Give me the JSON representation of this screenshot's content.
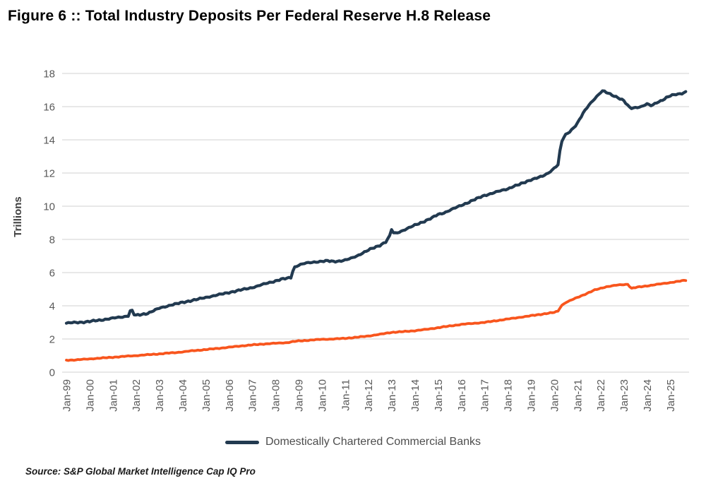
{
  "figure": {
    "title": "Figure 6 :: Total Industry Deposits Per Federal Reserve H.8 Release",
    "source_note": "Source: S&P Global Market Intelligence Cap IQ Pro"
  },
  "chart_data": {
    "type": "line",
    "title": "Figure 6 :: Total Industry Deposits Per Federal Reserve H.8 Release",
    "xlabel": "",
    "ylabel": "Trillions",
    "ylim": [
      0,
      18
    ],
    "xlim": [
      1999.0,
      2025.75
    ],
    "grid": "horizontal",
    "gridline_color": "#e0e0e0",
    "tick_label_color": "#595959",
    "y_ticks": [
      0,
      2,
      4,
      6,
      8,
      10,
      12,
      14,
      16,
      18
    ],
    "x_tick_labels": [
      "Jan-99",
      "Jan-00",
      "Jan-01",
      "Jan-02",
      "Jan-03",
      "Jan-04",
      "Jan-05",
      "Jan-06",
      "Jan-07",
      "Jan-08",
      "Jan-09",
      "Jan-10",
      "Jan-11",
      "Jan-12",
      "Jan-13",
      "Jan-14",
      "Jan-15",
      "Jan-16",
      "Jan-17",
      "Jan-18",
      "Jan-19",
      "Jan-20",
      "Jan-21",
      "Jan-22",
      "Jan-23",
      "Jan-24",
      "Jan-25"
    ],
    "legend": {
      "position": "bottom",
      "entries": [
        "Domestically Chartered Commercial Banks"
      ]
    },
    "series": [
      {
        "name": "Domestically Chartered Commercial Banks",
        "color": "#223a50",
        "in_legend": true,
        "points": [
          [
            1999.0,
            2.95
          ],
          [
            1999.25,
            2.98
          ],
          [
            1999.5,
            3.0
          ],
          [
            1999.75,
            3.02
          ],
          [
            2000.0,
            3.05
          ],
          [
            2000.25,
            3.1
          ],
          [
            2000.5,
            3.15
          ],
          [
            2000.75,
            3.2
          ],
          [
            2001.0,
            3.25
          ],
          [
            2001.25,
            3.3
          ],
          [
            2001.5,
            3.35
          ],
          [
            2001.7,
            3.42
          ],
          [
            2001.79,
            3.9
          ],
          [
            2001.88,
            3.5
          ],
          [
            2002.0,
            3.42
          ],
          [
            2002.25,
            3.48
          ],
          [
            2002.5,
            3.55
          ],
          [
            2002.75,
            3.7
          ],
          [
            2003.0,
            3.85
          ],
          [
            2003.25,
            3.95
          ],
          [
            2003.5,
            4.05
          ],
          [
            2003.75,
            4.12
          ],
          [
            2004.0,
            4.2
          ],
          [
            2004.25,
            4.28
          ],
          [
            2004.5,
            4.35
          ],
          [
            2004.75,
            4.42
          ],
          [
            2005.0,
            4.5
          ],
          [
            2005.25,
            4.58
          ],
          [
            2005.5,
            4.65
          ],
          [
            2005.75,
            4.72
          ],
          [
            2006.0,
            4.8
          ],
          [
            2006.25,
            4.88
          ],
          [
            2006.5,
            4.95
          ],
          [
            2006.75,
            5.02
          ],
          [
            2007.0,
            5.1
          ],
          [
            2007.25,
            5.2
          ],
          [
            2007.5,
            5.3
          ],
          [
            2007.75,
            5.4
          ],
          [
            2008.0,
            5.5
          ],
          [
            2008.25,
            5.6
          ],
          [
            2008.5,
            5.65
          ],
          [
            2008.67,
            5.7
          ],
          [
            2008.79,
            6.3
          ],
          [
            2008.92,
            6.4
          ],
          [
            2009.0,
            6.45
          ],
          [
            2009.25,
            6.55
          ],
          [
            2009.5,
            6.6
          ],
          [
            2009.75,
            6.65
          ],
          [
            2010.0,
            6.68
          ],
          [
            2010.25,
            6.7
          ],
          [
            2010.5,
            6.67
          ],
          [
            2010.75,
            6.7
          ],
          [
            2011.0,
            6.75
          ],
          [
            2011.25,
            6.85
          ],
          [
            2011.5,
            7.0
          ],
          [
            2011.75,
            7.18
          ],
          [
            2012.0,
            7.35
          ],
          [
            2012.25,
            7.5
          ],
          [
            2012.5,
            7.65
          ],
          [
            2012.75,
            7.85
          ],
          [
            2012.92,
            8.2
          ],
          [
            2013.0,
            8.6
          ],
          [
            2013.1,
            8.35
          ],
          [
            2013.25,
            8.4
          ],
          [
            2013.5,
            8.55
          ],
          [
            2013.75,
            8.7
          ],
          [
            2014.0,
            8.85
          ],
          [
            2014.25,
            9.0
          ],
          [
            2014.5,
            9.15
          ],
          [
            2014.75,
            9.3
          ],
          [
            2015.0,
            9.5
          ],
          [
            2015.25,
            9.6
          ],
          [
            2015.5,
            9.75
          ],
          [
            2015.75,
            9.9
          ],
          [
            2016.0,
            10.05
          ],
          [
            2016.25,
            10.2
          ],
          [
            2016.5,
            10.35
          ],
          [
            2016.75,
            10.5
          ],
          [
            2017.0,
            10.65
          ],
          [
            2017.25,
            10.75
          ],
          [
            2017.5,
            10.85
          ],
          [
            2017.75,
            10.95
          ],
          [
            2018.0,
            11.05
          ],
          [
            2018.25,
            11.2
          ],
          [
            2018.5,
            11.3
          ],
          [
            2018.75,
            11.45
          ],
          [
            2019.0,
            11.6
          ],
          [
            2019.25,
            11.7
          ],
          [
            2019.5,
            11.8
          ],
          [
            2019.75,
            12.0
          ],
          [
            2020.0,
            12.3
          ],
          [
            2020.17,
            12.5
          ],
          [
            2020.25,
            13.3
          ],
          [
            2020.33,
            13.9
          ],
          [
            2020.42,
            14.15
          ],
          [
            2020.5,
            14.3
          ],
          [
            2020.75,
            14.6
          ],
          [
            2021.0,
            15.0
          ],
          [
            2021.25,
            15.6
          ],
          [
            2021.5,
            16.1
          ],
          [
            2021.75,
            16.5
          ],
          [
            2022.0,
            16.85
          ],
          [
            2022.1,
            16.95
          ],
          [
            2022.25,
            16.85
          ],
          [
            2022.5,
            16.7
          ],
          [
            2022.75,
            16.55
          ],
          [
            2023.0,
            16.35
          ],
          [
            2023.2,
            16.0
          ],
          [
            2023.3,
            15.9
          ],
          [
            2023.5,
            15.95
          ],
          [
            2023.75,
            16.0
          ],
          [
            2024.0,
            16.15
          ],
          [
            2024.2,
            16.05
          ],
          [
            2024.4,
            16.25
          ],
          [
            2024.6,
            16.35
          ],
          [
            2024.8,
            16.5
          ],
          [
            2025.0,
            16.65
          ],
          [
            2025.25,
            16.75
          ],
          [
            2025.5,
            16.8
          ],
          [
            2025.7,
            16.9
          ]
        ]
      },
      {
        "name": "",
        "color": "#f8551d",
        "in_legend": false,
        "points": [
          [
            1999.0,
            0.72
          ],
          [
            1999.5,
            0.75
          ],
          [
            2000.0,
            0.8
          ],
          [
            2000.5,
            0.85
          ],
          [
            2001.0,
            0.9
          ],
          [
            2001.5,
            0.95
          ],
          [
            2002.0,
            1.0
          ],
          [
            2002.5,
            1.05
          ],
          [
            2003.0,
            1.1
          ],
          [
            2003.5,
            1.16
          ],
          [
            2004.0,
            1.22
          ],
          [
            2004.5,
            1.3
          ],
          [
            2005.0,
            1.36
          ],
          [
            2005.5,
            1.43
          ],
          [
            2006.0,
            1.5
          ],
          [
            2006.5,
            1.58
          ],
          [
            2007.0,
            1.64
          ],
          [
            2007.5,
            1.7
          ],
          [
            2008.0,
            1.74
          ],
          [
            2008.5,
            1.78
          ],
          [
            2008.75,
            1.84
          ],
          [
            2009.0,
            1.88
          ],
          [
            2009.5,
            1.93
          ],
          [
            2010.0,
            1.98
          ],
          [
            2010.5,
            2.0
          ],
          [
            2011.0,
            2.04
          ],
          [
            2011.5,
            2.1
          ],
          [
            2012.0,
            2.18
          ],
          [
            2012.5,
            2.28
          ],
          [
            2013.0,
            2.4
          ],
          [
            2013.5,
            2.44
          ],
          [
            2014.0,
            2.5
          ],
          [
            2014.5,
            2.58
          ],
          [
            2015.0,
            2.68
          ],
          [
            2015.5,
            2.78
          ],
          [
            2016.0,
            2.88
          ],
          [
            2016.5,
            2.94
          ],
          [
            2017.0,
            3.0
          ],
          [
            2017.5,
            3.1
          ],
          [
            2018.0,
            3.2
          ],
          [
            2018.5,
            3.3
          ],
          [
            2019.0,
            3.4
          ],
          [
            2019.5,
            3.5
          ],
          [
            2020.0,
            3.6
          ],
          [
            2020.17,
            3.68
          ],
          [
            2020.3,
            4.0
          ],
          [
            2020.5,
            4.2
          ],
          [
            2020.75,
            4.35
          ],
          [
            2021.0,
            4.5
          ],
          [
            2021.25,
            4.65
          ],
          [
            2021.5,
            4.8
          ],
          [
            2021.75,
            4.95
          ],
          [
            2022.0,
            5.05
          ],
          [
            2022.25,
            5.15
          ],
          [
            2022.5,
            5.2
          ],
          [
            2022.75,
            5.25
          ],
          [
            2023.0,
            5.28
          ],
          [
            2023.17,
            5.3
          ],
          [
            2023.33,
            5.05
          ],
          [
            2023.5,
            5.1
          ],
          [
            2023.75,
            5.15
          ],
          [
            2024.0,
            5.2
          ],
          [
            2024.25,
            5.25
          ],
          [
            2024.5,
            5.3
          ],
          [
            2024.75,
            5.35
          ],
          [
            2025.0,
            5.4
          ],
          [
            2025.25,
            5.45
          ],
          [
            2025.5,
            5.5
          ],
          [
            2025.7,
            5.55
          ]
        ]
      }
    ]
  }
}
